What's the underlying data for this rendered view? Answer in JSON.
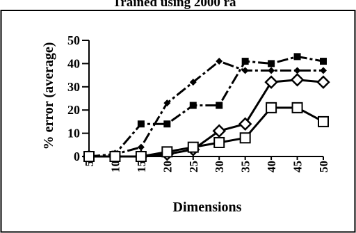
{
  "chart_data": {
    "type": "line",
    "title": "Trained using 2000 ra",
    "xlabel": "Dimensions",
    "ylabel": "% error (average)",
    "x": [
      5,
      10,
      15,
      20,
      25,
      30,
      35,
      40,
      45,
      50
    ],
    "yticks": [
      0,
      10,
      20,
      30,
      40,
      50
    ],
    "ylim": [
      0,
      50
    ],
    "grid": false,
    "series": [
      {
        "marker": "filled-square",
        "values": [
          0,
          1,
          14,
          14,
          22,
          22,
          41,
          40,
          43,
          41
        ]
      },
      {
        "marker": "filled-diamond",
        "values": [
          0,
          1,
          4,
          23,
          32,
          41,
          37,
          37,
          37,
          37
        ]
      },
      {
        "marker": "open-diamond",
        "values": [
          0,
          0,
          0,
          1,
          3,
          11,
          14,
          32,
          33,
          32
        ]
      },
      {
        "marker": "open-square",
        "values": [
          0,
          0,
          0,
          2,
          4,
          6,
          8,
          21,
          21,
          15
        ]
      }
    ]
  }
}
